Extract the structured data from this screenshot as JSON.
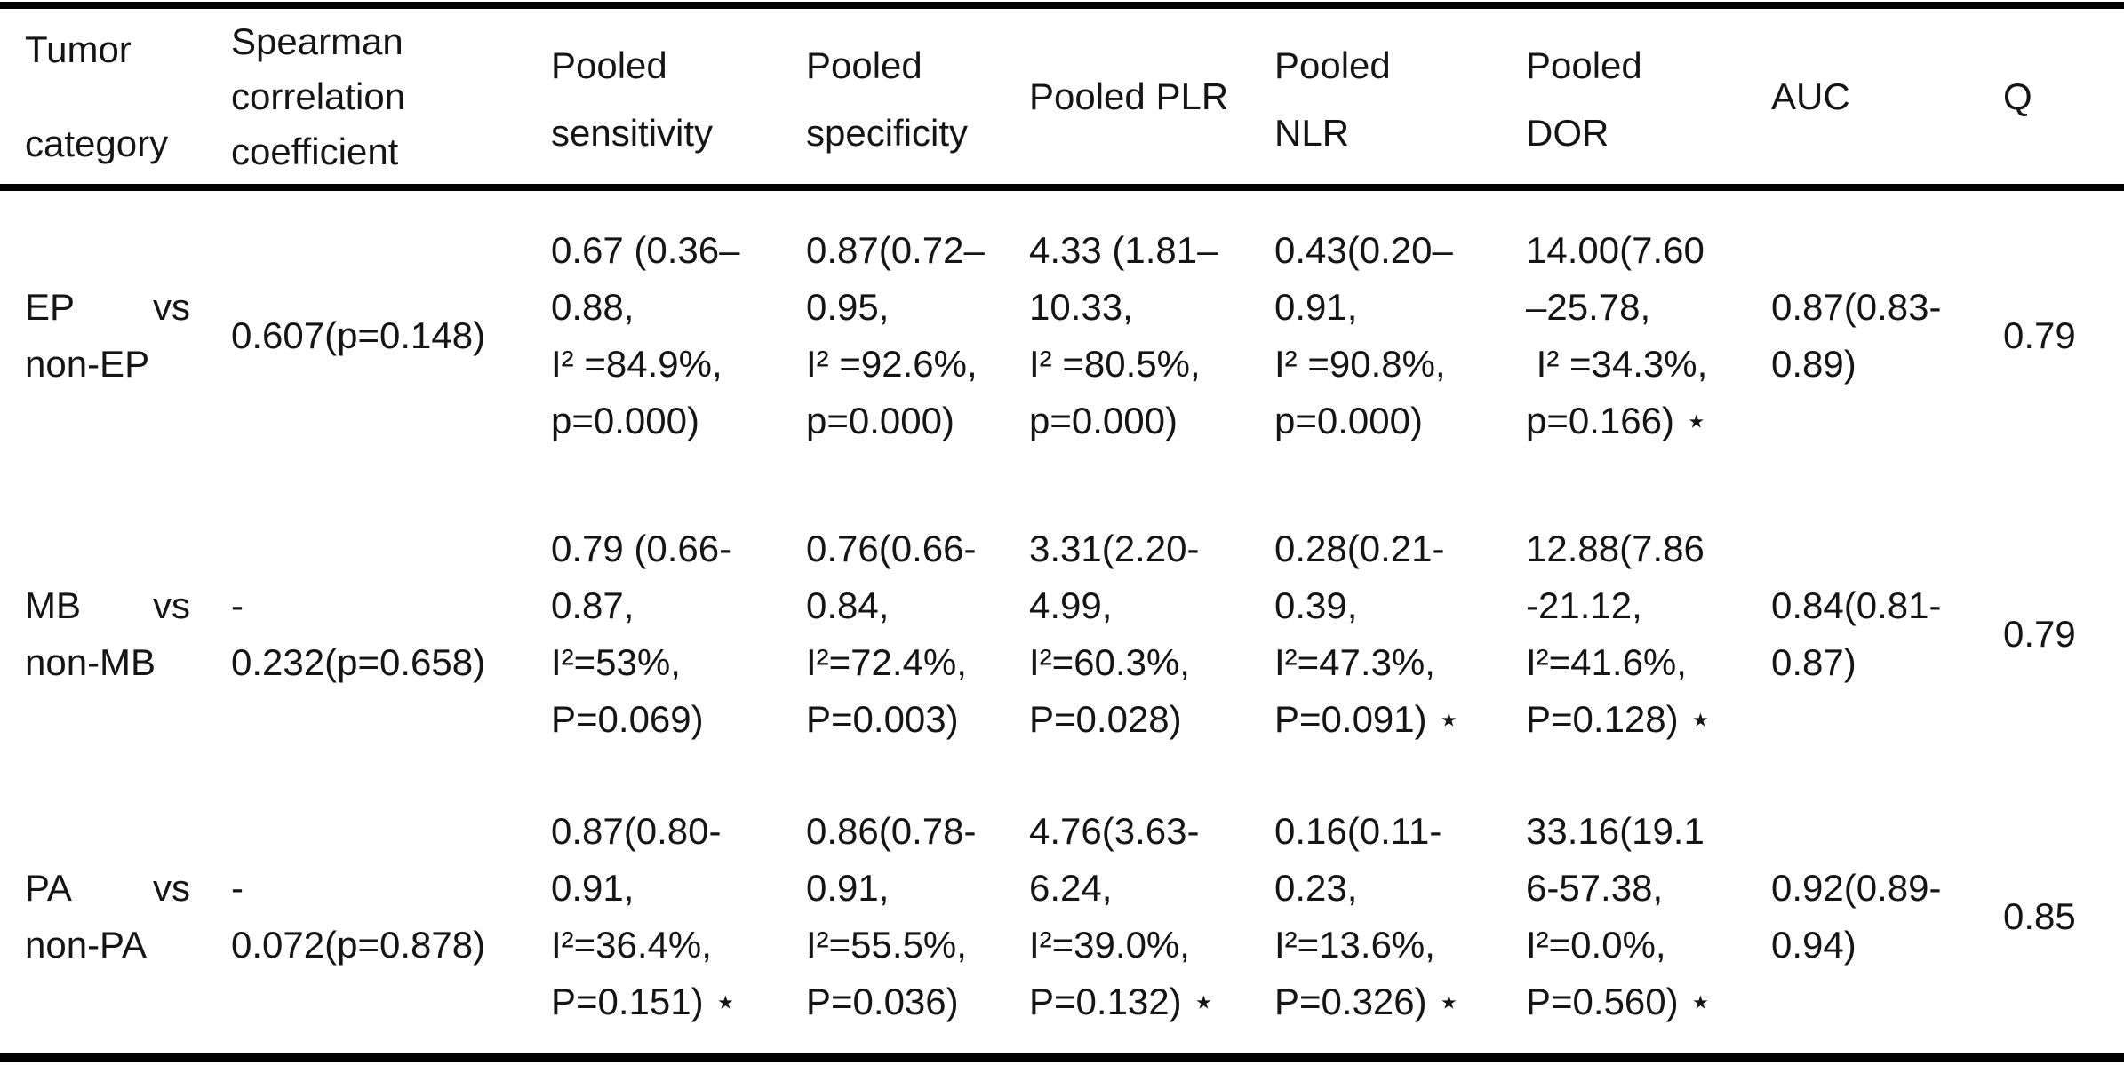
{
  "table": {
    "headers": [
      {
        "id": "tumor-category",
        "lines": [
          "Tumor",
          "category"
        ]
      },
      {
        "id": "spearman",
        "lines": [
          "Spearman",
          "correlation",
          "coefficient"
        ]
      },
      {
        "id": "pooled-sensitivity",
        "lines": [
          "Pooled",
          "sensitivity"
        ]
      },
      {
        "id": "pooled-specificity",
        "lines": [
          "Pooled",
          "specificity"
        ]
      },
      {
        "id": "pooled-plr",
        "lines": [
          "Pooled PLR"
        ]
      },
      {
        "id": "pooled-nlr",
        "lines": [
          "Pooled",
          "NLR"
        ]
      },
      {
        "id": "pooled-dor",
        "lines": [
          "Pooled",
          "DOR"
        ]
      },
      {
        "id": "auc",
        "lines": [
          "AUC"
        ]
      },
      {
        "id": "q",
        "lines": [
          "Q"
        ]
      }
    ],
    "rows": [
      {
        "tumor_l1a": "EP",
        "tumor_l1b": "vs",
        "tumor_l2": "non-EP",
        "spearman": [
          "0.607(p=0.148)"
        ],
        "sensitivity": [
          "0.67 (0.36–",
          "0.88,",
          "I² =84.9%,",
          "p=0.000)"
        ],
        "specificity": [
          "0.87(0.72–",
          "0.95,",
          "I² =92.6%,",
          "p=0.000)"
        ],
        "plr": [
          "4.33 (1.81–",
          "10.33,",
          "I² =80.5%,",
          "p=0.000)"
        ],
        "nlr": [
          "0.43(0.20–",
          "0.91,",
          "I² =90.8%,",
          "p=0.000)"
        ],
        "dor": [
          "14.00(7.60",
          "–25.78,",
          " I² =34.3%,",
          "p=0.166) ⋆"
        ],
        "auc": [
          "0.87(0.83-",
          "0.89)"
        ],
        "q": "0.79"
      },
      {
        "tumor_l1a": "MB",
        "tumor_l1b": "vs",
        "tumor_l2": "non-MB",
        "spearman": [
          "-",
          "0.232(p=0.658)"
        ],
        "sensitivity": [
          "0.79 (0.66-",
          "0.87,",
          "I²=53%,",
          "P=0.069)"
        ],
        "specificity": [
          "0.76(0.66-",
          "0.84,",
          "I²=72.4%,",
          "P=0.003)"
        ],
        "plr": [
          "3.31(2.20-",
          "4.99,",
          "I²=60.3%,",
          "P=0.028)"
        ],
        "nlr": [
          "0.28(0.21-",
          "0.39,",
          "I²=47.3%,",
          "P=0.091) ⋆"
        ],
        "dor": [
          "12.88(7.86",
          "-21.12,",
          "I²=41.6%,",
          "P=0.128) ⋆"
        ],
        "auc": [
          "0.84(0.81-",
          "0.87)"
        ],
        "q": "0.79"
      },
      {
        "tumor_l1a": "PA",
        "tumor_l1b": "vs",
        "tumor_l2": "non-PA",
        "spearman": [
          "-",
          "0.072(p=0.878)"
        ],
        "sensitivity": [
          "0.87(0.80-",
          "0.91,",
          "I²=36.4%,",
          "P=0.151) ⋆"
        ],
        "specificity": [
          "0.86(0.78-",
          "0.91,",
          "I²=55.5%,",
          "P=0.036)"
        ],
        "plr": [
          "4.76(3.63-",
          "6.24,",
          "I²=39.0%,",
          "P=0.132) ⋆"
        ],
        "nlr": [
          "0.16(0.11-",
          "0.23,",
          "I²=13.6%,",
          "P=0.326) ⋆"
        ],
        "dor": [
          "33.16(19.1",
          "6-57.38,",
          "I²=0.0%,",
          "P=0.560) ⋆"
        ],
        "auc": [
          "0.92(0.89-",
          "0.94)"
        ],
        "q": "0.85"
      }
    ]
  },
  "colors": {
    "text": "#151515",
    "rule": "#000000",
    "background": "#ffffff"
  }
}
